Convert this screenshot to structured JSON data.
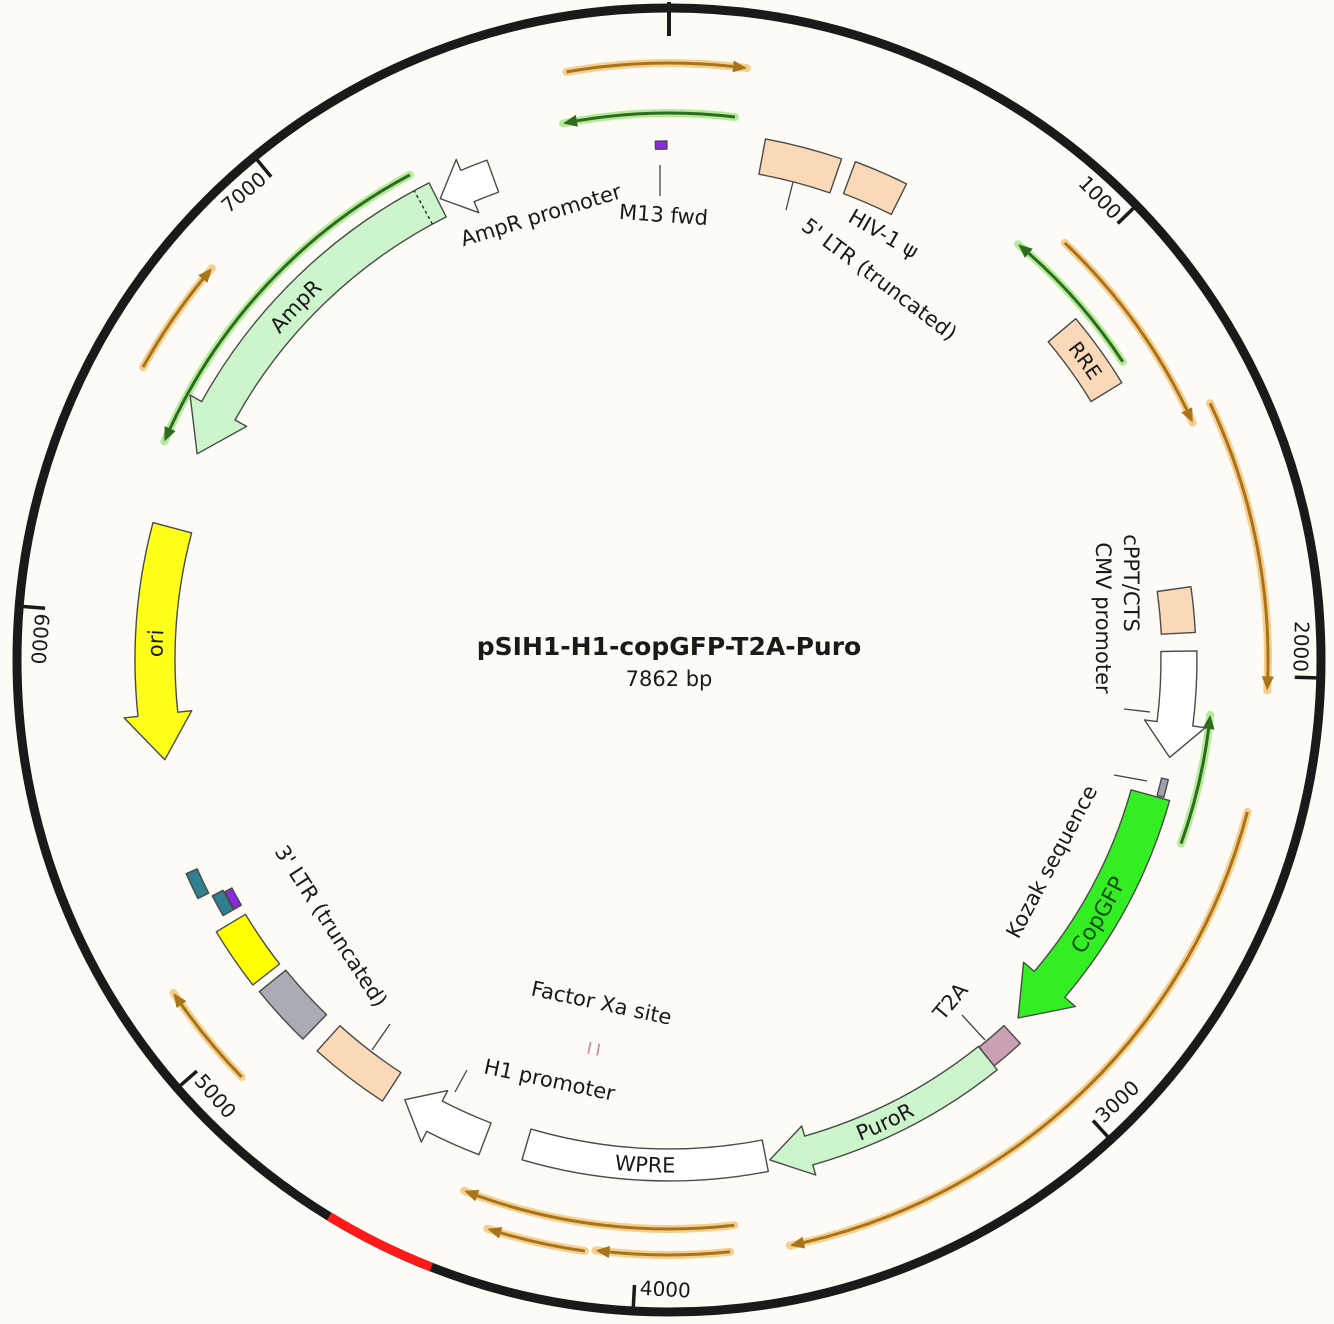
{
  "title": "pSIH1-H1-copGFP-T2A-Puro",
  "length_label": "7862 bp",
  "length_bp": 7862,
  "ticks": [
    {
      "bp": 1000,
      "label": "1000"
    },
    {
      "bp": 2000,
      "label": "2000"
    },
    {
      "bp": 3000,
      "label": "3000"
    },
    {
      "bp": 4000,
      "label": "4000"
    },
    {
      "bp": 5000,
      "label": "5000"
    },
    {
      "bp": 6000,
      "label": "6000"
    },
    {
      "bp": 7000,
      "label": "7000"
    }
  ],
  "colors": {
    "backbone": "#1a1a1a",
    "orf_orange": "#a8741a",
    "orf_orange_glow": "#f5c77e",
    "orf_green": "#2e6b1f",
    "orf_green_glow": "#a6e88a",
    "highlight": "#ff1a1a"
  },
  "highlight": {
    "start": 4398,
    "end": 4617
  },
  "features": [
    {
      "label": "AmpR",
      "start": 6412,
      "end": 7279,
      "direction": "reverse",
      "color": "#ccf5cc"
    },
    {
      "label": "AmpR promoter",
      "start": 7286,
      "end": 7425,
      "direction": "reverse",
      "color": "#ffffff"
    },
    {
      "label": "M13 fwd",
      "start": 7829,
      "end": 7857,
      "direction": "none",
      "color": "#8a2be2"
    },
    {
      "label": "5' LTR (truncated)",
      "start": 229,
      "end": 415,
      "direction": "none",
      "color": "#fad9b8"
    },
    {
      "label": "HIV-1 ψ",
      "start": 448,
      "end": 579,
      "direction": "none",
      "color": "#fad9b8"
    },
    {
      "label": "RRE",
      "start": 1092,
      "end": 1278,
      "direction": "none",
      "color": "#fad9b8"
    },
    {
      "label": "cPPT/CTS",
      "start": 1791,
      "end": 1900,
      "direction": "none",
      "color": "#fad9b8"
    },
    {
      "label": "CMV promoter",
      "start": 1944,
      "end": 2206,
      "direction": "forward",
      "color": "#ffffff"
    },
    {
      "label": "Kozak sequence",
      "start": 2260,
      "end": 2304,
      "direction": "none",
      "color": "#9aa3ad"
    },
    {
      "label": "CopGFP",
      "start": 2308,
      "end": 2964,
      "direction": "forward",
      "color": "#33ee22"
    },
    {
      "label": "T2A",
      "start": 3003,
      "end": 3086,
      "direction": "none",
      "color": "#c9a0b4"
    },
    {
      "label": "PuroR",
      "start": 3086,
      "end": 3682,
      "direction": "forward",
      "color": "#ccf5cc"
    },
    {
      "label": "WPRE",
      "start": 3691,
      "end": 4289,
      "direction": "none",
      "color": "#ffffff"
    },
    {
      "label": "Factor Xa site",
      "start": 4170,
      "end": 4182,
      "direction": "none",
      "color": "#d88aa8"
    },
    {
      "label": "H1 promoter",
      "start": 4390,
      "end": 4608,
      "direction": "forward",
      "color": "#ffffff"
    },
    {
      "label": "3' LTR (truncated)",
      "start": 4652,
      "end": 4848,
      "direction": "none",
      "color": "#fad9b8"
    },
    {
      "start": 4892,
      "end": 5045,
      "direction": "none",
      "color": "#a9acb2"
    },
    {
      "start": 5067,
      "end": 5220,
      "direction": "none",
      "color": "#ffff00"
    },
    {
      "label": "ori",
      "start": 5652,
      "end": 6222,
      "direction": "reverse",
      "color": "#ffff1a"
    },
    {
      "start": 5310,
      "end": 5375,
      "direction": "none",
      "color": "#2f7f8f"
    },
    {
      "start": 5245,
      "end": 5300,
      "direction": "none",
      "color": "#2f7f8f"
    },
    {
      "start": 5245,
      "end": 5295,
      "direction": "none",
      "color": "#8a2be2"
    }
  ],
  "orfs": [
    {
      "start": 7646,
      "end": 164,
      "direction": "forward",
      "kind": "orange"
    },
    {
      "start": 950,
      "end": 1433,
      "direction": "forward",
      "kind": "orange"
    },
    {
      "start": 1411,
      "end": 2029,
      "direction": "forward",
      "kind": "orange"
    },
    {
      "start": 2287,
      "end": 3676,
      "direction": "forward",
      "kind": "orange"
    },
    {
      "start": 3787,
      "end": 4392,
      "direction": "forward",
      "kind": "orange"
    },
    {
      "start": 4108,
      "end": 4318,
      "direction": "forward",
      "kind": "orange"
    },
    {
      "start": 3802,
      "end": 4086,
      "direction": "forward",
      "kind": "orange"
    },
    {
      "start": 4929,
      "end": 5156,
      "direction": "forward",
      "kind": "orange"
    },
    {
      "start": 6532,
      "end": 6783,
      "direction": "forward",
      "kind": "orange"
    },
    {
      "start": 7618,
      "end": 151,
      "direction": "reverse",
      "kind": "green"
    },
    {
      "start": 874,
      "end": 1238,
      "direction": "reverse",
      "kind": "green"
    },
    {
      "start": 2092,
      "end": 2396,
      "direction": "reverse",
      "kind": "green"
    },
    {
      "start": 6408,
      "end": 7248,
      "direction": "reverse",
      "kind": "green"
    }
  ]
}
